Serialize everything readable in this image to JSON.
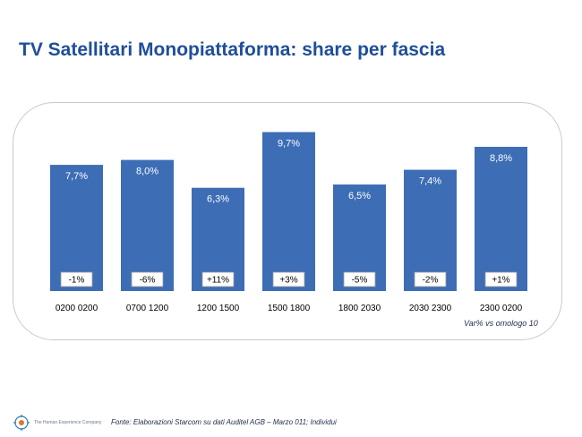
{
  "slide": {
    "title": "TV Satellitari Monopiattaforma: share per fascia",
    "note": "Var% vs omologo 10",
    "source": "Fonte: Elaborazioni Starcom su dati Auditel AGB – Marzo 011; Individui",
    "brand": "The Human Experience Company"
  },
  "colors": {
    "title": "#1f4e99",
    "bar": "#3d6db5",
    "bar_label": "#ffffff"
  },
  "chart_data": {
    "type": "bar",
    "categories": [
      "0200 0200",
      "0700 1200",
      "1200 1500",
      "1500 1800",
      "1800 2030",
      "2030 2300",
      "2300 0200"
    ],
    "values": [
      7.7,
      8.0,
      6.3,
      9.7,
      6.5,
      7.4,
      8.8
    ],
    "value_labels": [
      "7,7%",
      "8,0%",
      "6,3%",
      "9,7%",
      "6,5%",
      "7,4%",
      "8,8%"
    ],
    "variation_labels": [
      "-1%",
      "-6%",
      "+11%",
      "+3%",
      "-5%",
      "-2%",
      "+1%"
    ],
    "ylim": [
      0,
      10
    ],
    "grid": false,
    "title": "",
    "xlabel": "",
    "ylabel": ""
  }
}
